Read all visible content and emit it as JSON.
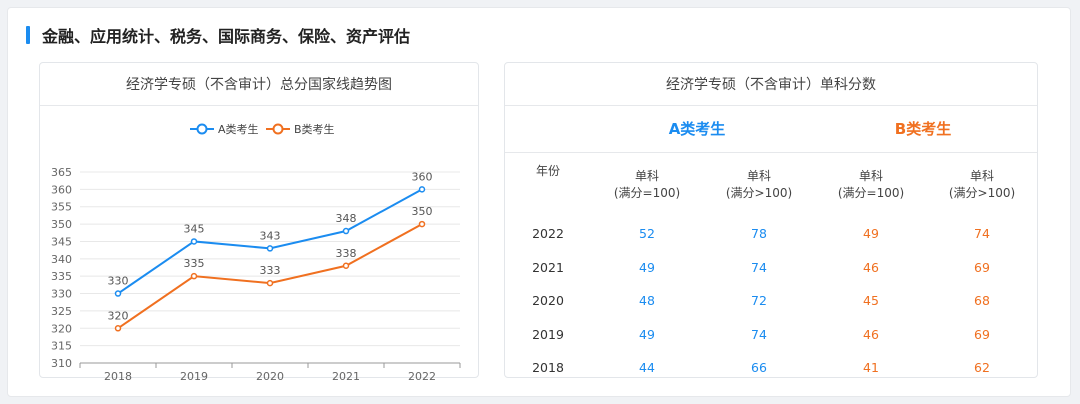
{
  "section": {
    "title": "金融、应用统计、税务、国际商务、保险、资产评估"
  },
  "chart_data": {
    "type": "line",
    "title": "经济学专硕（不含审计）总分国家线趋势图",
    "categories": [
      "2018",
      "2019",
      "2020",
      "2021",
      "2022"
    ],
    "series": [
      {
        "name": "A类考生",
        "values": [
          330,
          345,
          343,
          348,
          360
        ],
        "color": "#1b8cf0"
      },
      {
        "name": "B类考生",
        "values": [
          320,
          335,
          333,
          338,
          350
        ],
        "color": "#f07020"
      }
    ],
    "yticks": [
      310,
      315,
      320,
      325,
      330,
      335,
      340,
      345,
      350,
      355,
      360,
      365
    ],
    "ylim": [
      310,
      365
    ],
    "legend": "top-center",
    "grid": true
  },
  "table": {
    "title": "经济学专硕（不含审计）单科分数",
    "groups": [
      "A类考生",
      "B类考生"
    ],
    "year_header": "年份",
    "headers": [
      {
        "line1": "单科",
        "line2": "(满分=100)"
      },
      {
        "line1": "单科",
        "line2": "(满分>100)"
      },
      {
        "line1": "单科",
        "line2": "(满分=100)"
      },
      {
        "line1": "单科",
        "line2": "(满分>100)"
      }
    ],
    "rows": [
      {
        "year": "2022",
        "a1": "52",
        "a2": "78",
        "b1": "49",
        "b2": "74"
      },
      {
        "year": "2021",
        "a1": "49",
        "a2": "74",
        "b1": "46",
        "b2": "69"
      },
      {
        "year": "2020",
        "a1": "48",
        "a2": "72",
        "b1": "45",
        "b2": "68"
      },
      {
        "year": "2019",
        "a1": "49",
        "a2": "74",
        "b1": "46",
        "b2": "69"
      },
      {
        "year": "2018",
        "a1": "44",
        "a2": "66",
        "b1": "41",
        "b2": "62"
      }
    ]
  }
}
